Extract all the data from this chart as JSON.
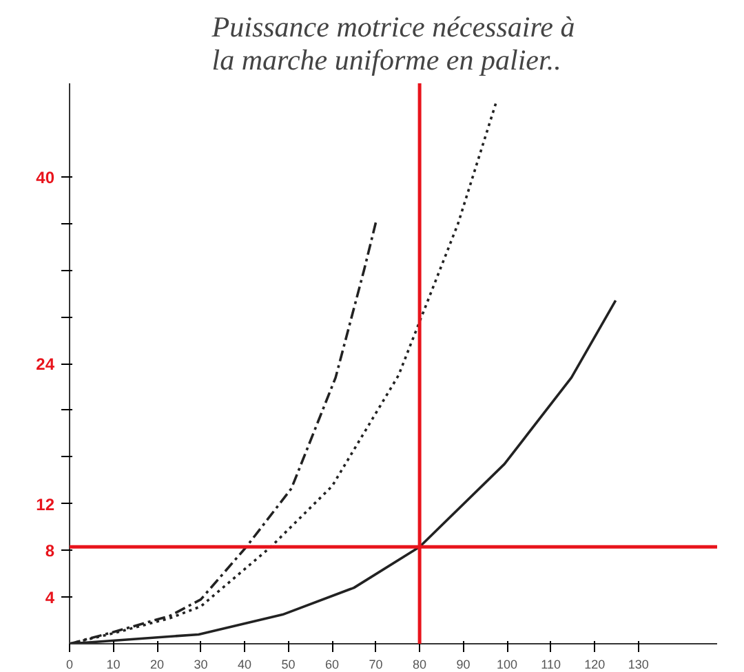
{
  "chart_data": {
    "type": "line",
    "title": "Puissance motrice nécessaire à la marche uniforme en palier..",
    "xlim": [
      0,
      148
    ],
    "ylim": [
      0,
      48
    ],
    "xticks": [
      0,
      10,
      20,
      30,
      40,
      50,
      60,
      70,
      80,
      90,
      100,
      110,
      120,
      130
    ],
    "yticks": [
      {
        "value": 4,
        "label": "4"
      },
      {
        "value": 8,
        "label": "8"
      },
      {
        "value": 12,
        "label": "12"
      },
      {
        "value": 16,
        "label": null
      },
      {
        "value": 20,
        "label": null
      },
      {
        "value": 24,
        "label": "24"
      },
      {
        "value": 28,
        "label": null
      },
      {
        "value": 32,
        "label": null
      },
      {
        "value": 36,
        "label": null
      },
      {
        "value": 40,
        "label": "40"
      }
    ],
    "grid": false,
    "marker": "none",
    "series": [
      {
        "color": "#222222",
        "line_style": "dashdot",
        "x": [
          0,
          10,
          23,
          30,
          40.4,
          50.7,
          60.8,
          67.3,
          70.2
        ],
        "values": [
          0,
          1,
          2.4,
          3.8,
          8.3,
          13.3,
          22.8,
          32,
          36.4
        ]
      },
      {
        "color": "#222222",
        "line_style": "dotted",
        "x": [
          0,
          10,
          23,
          30,
          46,
          60,
          75.2,
          88.8,
          97.6
        ],
        "values": [
          0,
          0.9,
          2.2,
          3.2,
          8.3,
          13.5,
          23,
          36,
          46.5
        ]
      },
      {
        "color": "#222222",
        "line_style": "solid",
        "x": [
          0,
          29.5,
          48.7,
          65,
          80,
          99.4,
          114.7,
          124.8
        ],
        "values": [
          0,
          0.8,
          2.5,
          4.8,
          8.3,
          15.4,
          22.8,
          29.4
        ]
      }
    ],
    "ref_lines": [
      {
        "axis": "x",
        "value": 80,
        "color": "#e8141c"
      },
      {
        "axis": "y",
        "value": 8.3,
        "color": "#e8141c"
      }
    ]
  }
}
